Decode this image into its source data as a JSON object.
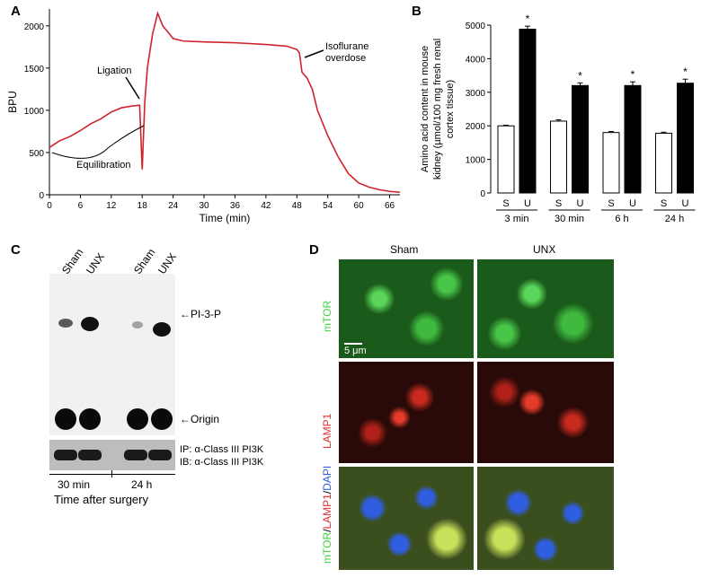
{
  "panels": {
    "a": "A",
    "b": "B",
    "c": "C",
    "d": "D"
  },
  "chart_data": [
    {
      "type": "line",
      "panel": "A",
      "xlabel": "Time (min)",
      "ylabel": "BPU",
      "xlim": [
        0,
        68
      ],
      "ylim": [
        0,
        2200
      ],
      "xticks": [
        0,
        6,
        12,
        18,
        24,
        30,
        36,
        42,
        48,
        54,
        60,
        66
      ],
      "yticks": [
        0,
        500,
        1000,
        1500,
        2000
      ],
      "series": [
        {
          "x": [
            0,
            2,
            4,
            6,
            8,
            10,
            12,
            14,
            16,
            17.5,
            18,
            18.5,
            19,
            20,
            21,
            22,
            24,
            26,
            30,
            36,
            42,
            46,
            48,
            48.5,
            49,
            50,
            51,
            52,
            54,
            56,
            58,
            60,
            62,
            64,
            66,
            68
          ],
          "y": [
            560,
            640,
            690,
            760,
            840,
            900,
            980,
            1030,
            1050,
            1060,
            300,
            1100,
            1500,
            1900,
            2150,
            2000,
            1850,
            1820,
            1810,
            1800,
            1780,
            1760,
            1720,
            1680,
            1450,
            1380,
            1250,
            1000,
            700,
            450,
            250,
            140,
            90,
            60,
            40,
            30
          ]
        }
      ],
      "annotations": [
        "Ligation",
        "Isoflurane overdose",
        "Equilibration"
      ],
      "color": "#d1222a"
    },
    {
      "type": "bar",
      "panel": "B",
      "ylabel_lines": [
        "Amino acid content in mouse",
        "kidney (µmol/100 mg fresh renal",
        "cortex tissue)"
      ],
      "ylim": [
        0,
        5000
      ],
      "yticks": [
        0,
        1000,
        2000,
        3000,
        4000,
        5000
      ],
      "groups": [
        "3 min",
        "30 min",
        "6 h",
        "24 h"
      ],
      "bar_labels": [
        "S",
        "U"
      ],
      "series": [
        {
          "key": "S",
          "values": [
            2000,
            2140,
            1800,
            1780
          ],
          "errors": [
            20,
            40,
            30,
            30
          ],
          "color": "#ffffff"
        },
        {
          "key": "U",
          "values": [
            4880,
            3200,
            3200,
            3270
          ],
          "errors": [
            90,
            80,
            110,
            120
          ],
          "color": "#000000"
        }
      ],
      "significance": "*"
    }
  ],
  "panel_c": {
    "lanes": [
      "Sham",
      "UNX",
      "Sham",
      "UNX"
    ],
    "band_labels": [
      "PI-3-P",
      "Origin"
    ],
    "ip_line": "IP: α-Class III PI3K",
    "ib_line": "IB: α-Class III PI3K",
    "timepoints": [
      "30 min",
      "24 h"
    ],
    "xlabel": "Time after surgery"
  },
  "panel_d": {
    "columns": [
      "Sham",
      "UNX"
    ],
    "rows": [
      "mTOR",
      "LAMP1"
    ],
    "merge_parts": [
      {
        "text": "mTOR",
        "color": "#3fd43f"
      },
      {
        "text": "/",
        "color": "#000000"
      },
      {
        "text": "LAMP1",
        "color": "#e03030"
      },
      {
        "text": "/",
        "color": "#000000"
      },
      {
        "text": "DAPI",
        "color": "#3060e0"
      }
    ],
    "scalebar": "5 μm",
    "colors": {
      "green": "#3fd43f",
      "red": "#e03030",
      "blue": "#3060e0"
    }
  }
}
